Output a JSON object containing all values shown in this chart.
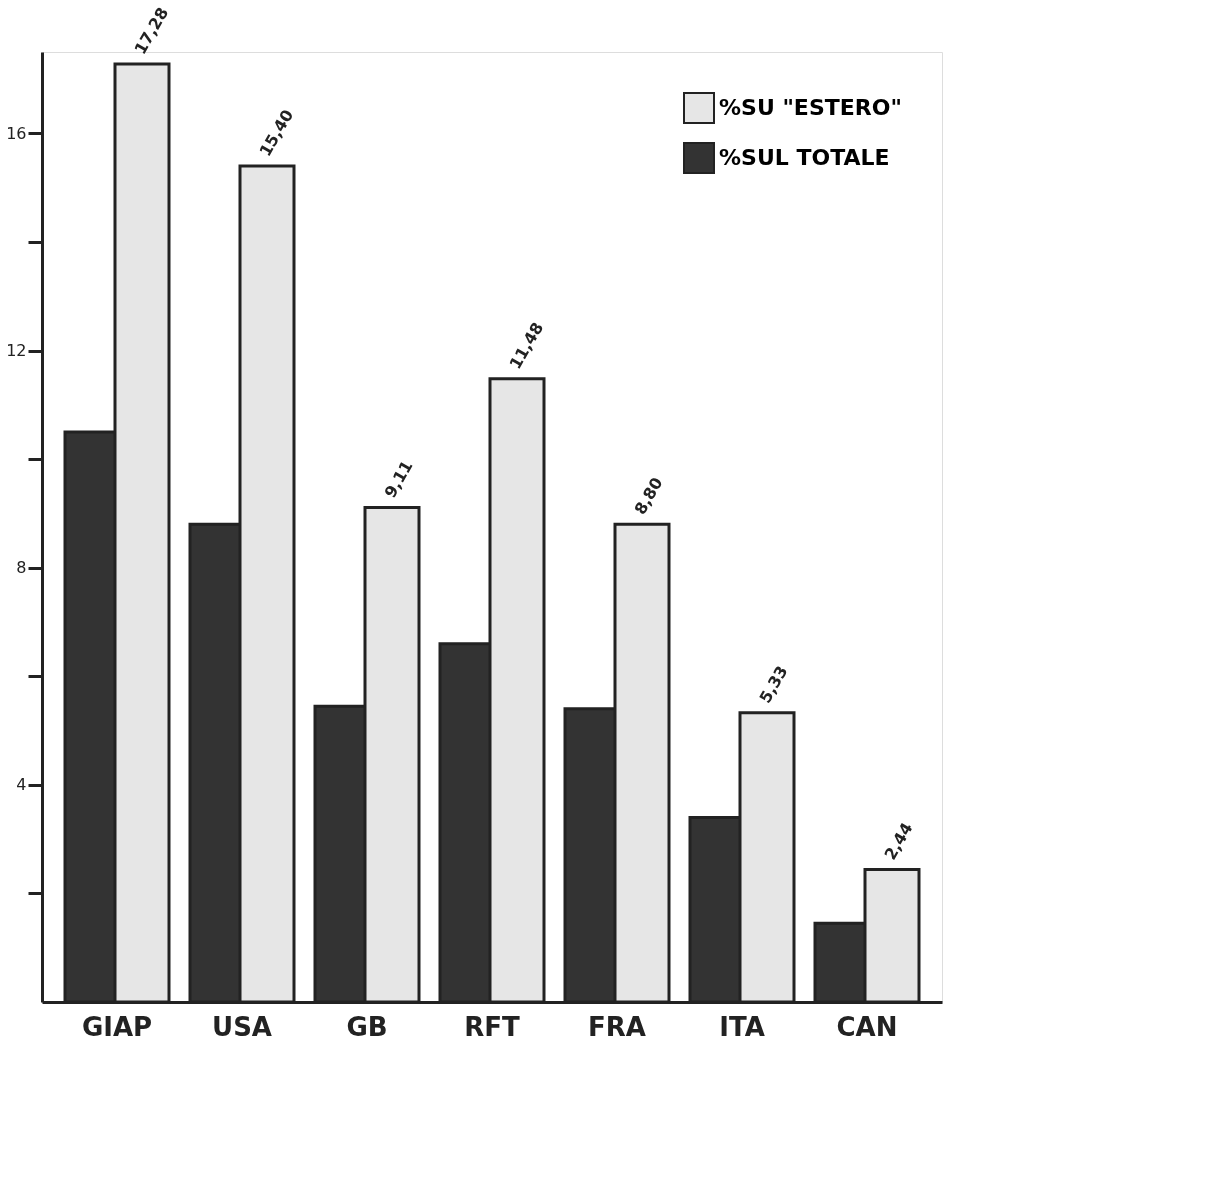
{
  "chart_data": {
    "type": "bar",
    "categories": [
      "GIAP",
      "USA",
      "GB",
      "RFT",
      "FRA",
      "ITA",
      "CAN"
    ],
    "series": [
      {
        "name": "%SU \"ESTERO\"",
        "color": "#e6e6e6",
        "values": [
          17.28,
          15.4,
          9.11,
          11.48,
          8.8,
          5.33,
          2.44
        ],
        "value_labels": [
          "17,28",
          "15,40",
          "9,11",
          "11,48",
          "8,80",
          "5,33",
          "2,44"
        ]
      },
      {
        "name": "%SUL TOTALE",
        "color": "#333333",
        "values": [
          10.5,
          8.8,
          5.45,
          6.6,
          5.4,
          3.4,
          1.45
        ]
      }
    ],
    "ylim": [
      0,
      17.5
    ],
    "yticks": [
      {
        "value": 2,
        "label": null
      },
      4,
      {
        "value": 6,
        "label": null
      },
      8,
      {
        "value": 10,
        "label": null
      },
      12,
      {
        "value": 14,
        "label": null
      },
      16
    ],
    "grid": false,
    "legend": "top right"
  }
}
